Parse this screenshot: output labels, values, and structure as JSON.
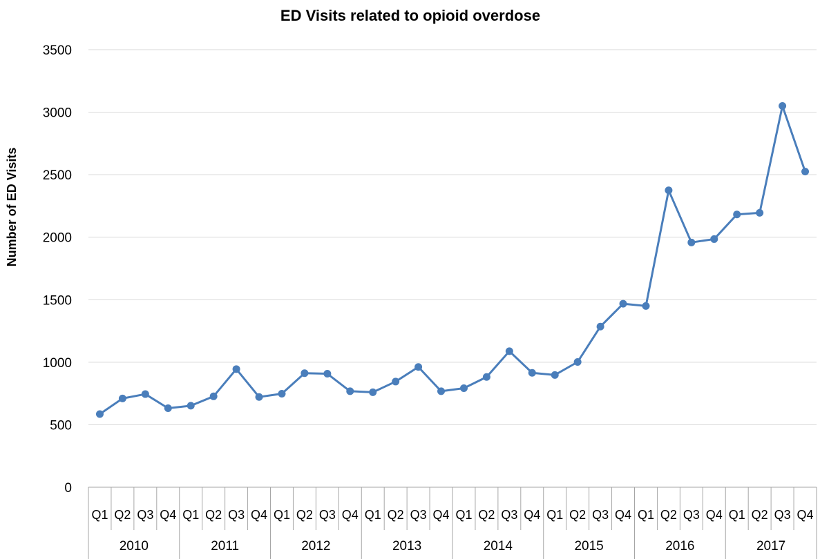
{
  "chart_data": {
    "type": "line",
    "title": "ED Visits related to opioid overdose",
    "xlabel": "",
    "ylabel": "Number of ED Visits",
    "ylim": [
      0,
      3500
    ],
    "yticks": [
      0,
      500,
      1000,
      1500,
      2000,
      2500,
      3000,
      3500
    ],
    "grid": true,
    "legend": "none",
    "years": [
      "2010",
      "2011",
      "2012",
      "2013",
      "2014",
      "2015",
      "2016",
      "2017"
    ],
    "quarters": [
      "Q1",
      "Q2",
      "Q3",
      "Q4"
    ],
    "categories": [
      "2010 Q1",
      "2010 Q2",
      "2010 Q3",
      "2010 Q4",
      "2011 Q1",
      "2011 Q2",
      "2011 Q3",
      "2011 Q4",
      "2012 Q1",
      "2012 Q2",
      "2012 Q3",
      "2012 Q4",
      "2013 Q1",
      "2013 Q2",
      "2013 Q3",
      "2013 Q4",
      "2014 Q1",
      "2014 Q2",
      "2014 Q3",
      "2014 Q4",
      "2015 Q1",
      "2015 Q2",
      "2015 Q3",
      "2015 Q4",
      "2016 Q1",
      "2016 Q2",
      "2016 Q3",
      "2016 Q4",
      "2017 Q1",
      "2017 Q2",
      "2017 Q3",
      "2017 Q4"
    ],
    "series": [
      {
        "color": "#4a7ebb",
        "values": [
          585,
          710,
          745,
          632,
          652,
          727,
          945,
          722,
          748,
          912,
          908,
          768,
          760,
          845,
          962,
          768,
          792,
          882,
          1088,
          915,
          898,
          1002,
          1285,
          1468,
          1450,
          2375,
          1958,
          1985,
          2182,
          2195,
          3050,
          2525
        ]
      }
    ]
  }
}
